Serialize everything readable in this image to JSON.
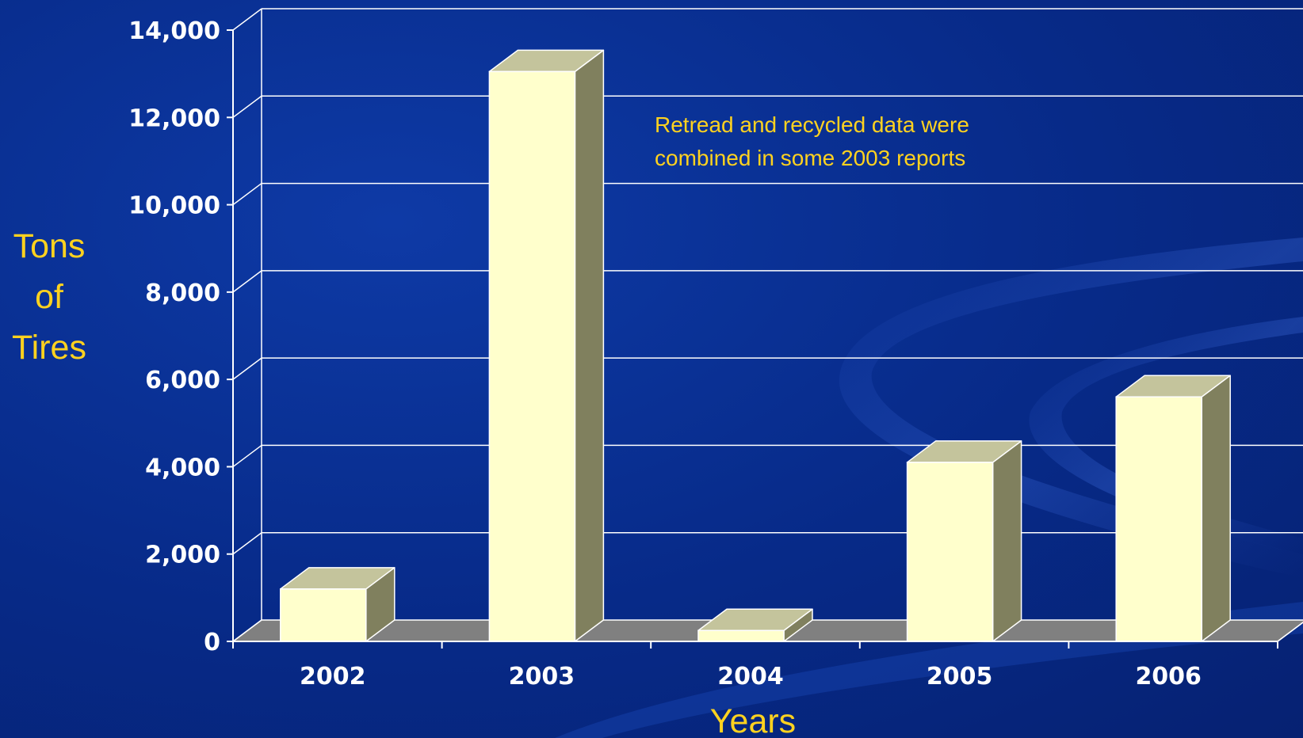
{
  "chart_data": {
    "type": "bar",
    "title": "",
    "categories": [
      "2002",
      "2003",
      "2004",
      "2005",
      "2006"
    ],
    "values": [
      1200,
      13050,
      250,
      4100,
      5600
    ],
    "xlabel": "Years",
    "ylabel": "Tons of Tires",
    "ylabel_lines": [
      "Tons",
      "of",
      "Tires"
    ],
    "ylim": [
      0,
      14000
    ],
    "yticks": [
      0,
      2000,
      4000,
      6000,
      8000,
      10000,
      12000,
      14000
    ],
    "ytick_labels": [
      "0",
      "2,000",
      "4,000",
      "6,000",
      "8,000",
      "10,000",
      "12,000",
      "14,000"
    ],
    "grid": true,
    "legend": "none",
    "three_d": true,
    "annotation_lines": [
      "Retread and recycled data were",
      "combined in some 2003 reports"
    ],
    "colors": {
      "background": "#0a2d8c",
      "bar_front": "#ffffcc",
      "bar_top": "#c4c49c",
      "bar_side": "#80805e",
      "floor": "#808080",
      "grid": "#ffffff",
      "tick_text": "#ffffff",
      "title_text": "#ffd21f"
    }
  }
}
